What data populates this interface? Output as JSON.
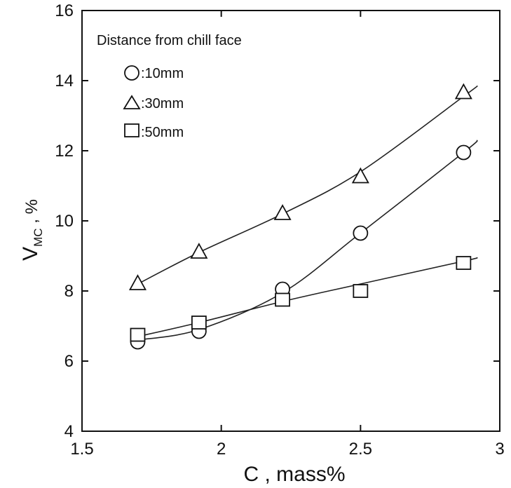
{
  "chart_data": {
    "type": "line",
    "xlabel": "C , mass%",
    "ylabel_main": "V",
    "ylabel_sub": "MC",
    "ylabel_suffix": " , %",
    "xlim": [
      1.5,
      3
    ],
    "ylim": [
      4,
      16
    ],
    "x_ticks": [
      1.5,
      2,
      2.5,
      3
    ],
    "x_tick_labels": [
      "1.5",
      "2",
      "2.5",
      "3"
    ],
    "y_ticks": [
      4,
      6,
      8,
      10,
      12,
      14,
      16
    ],
    "y_tick_labels": [
      "4",
      "6",
      "8",
      "10",
      "12",
      "14",
      "16"
    ],
    "grid": false,
    "legend": {
      "title": "Distance from chill face",
      "placement": "top-left",
      "entries": [
        {
          "marker": "circle",
          "label": ":10mm"
        },
        {
          "marker": "triangle",
          "label": ":30mm"
        },
        {
          "marker": "square",
          "label": ":50mm"
        }
      ]
    },
    "series": [
      {
        "label": "10mm",
        "marker": "circle",
        "x": [
          1.7,
          1.92,
          2.22,
          2.5,
          2.87
        ],
        "y": [
          6.55,
          6.85,
          8.05,
          9.65,
          11.95
        ],
        "trend_x": [
          1.7,
          1.92,
          2.22,
          2.5,
          2.87,
          2.92
        ],
        "trend_y": [
          6.6,
          6.9,
          7.95,
          9.65,
          11.95,
          12.3
        ]
      },
      {
        "label": "30mm",
        "marker": "triangle",
        "x": [
          1.7,
          1.92,
          2.22,
          2.5,
          2.87
        ],
        "y": [
          8.2,
          9.1,
          10.2,
          11.25,
          13.65
        ],
        "trend_x": [
          1.7,
          1.92,
          2.22,
          2.5,
          2.87,
          2.92
        ],
        "trend_y": [
          8.2,
          9.1,
          10.2,
          11.4,
          13.55,
          13.85
        ]
      },
      {
        "label": "50mm",
        "marker": "square",
        "x": [
          1.7,
          1.92,
          2.22,
          2.5,
          2.87
        ],
        "y": [
          6.75,
          7.1,
          7.75,
          8.0,
          8.8
        ],
        "trend_x": [
          1.7,
          1.92,
          2.22,
          2.5,
          2.87,
          2.92
        ],
        "trend_y": [
          6.7,
          7.1,
          7.7,
          8.2,
          8.85,
          8.95
        ]
      }
    ]
  }
}
